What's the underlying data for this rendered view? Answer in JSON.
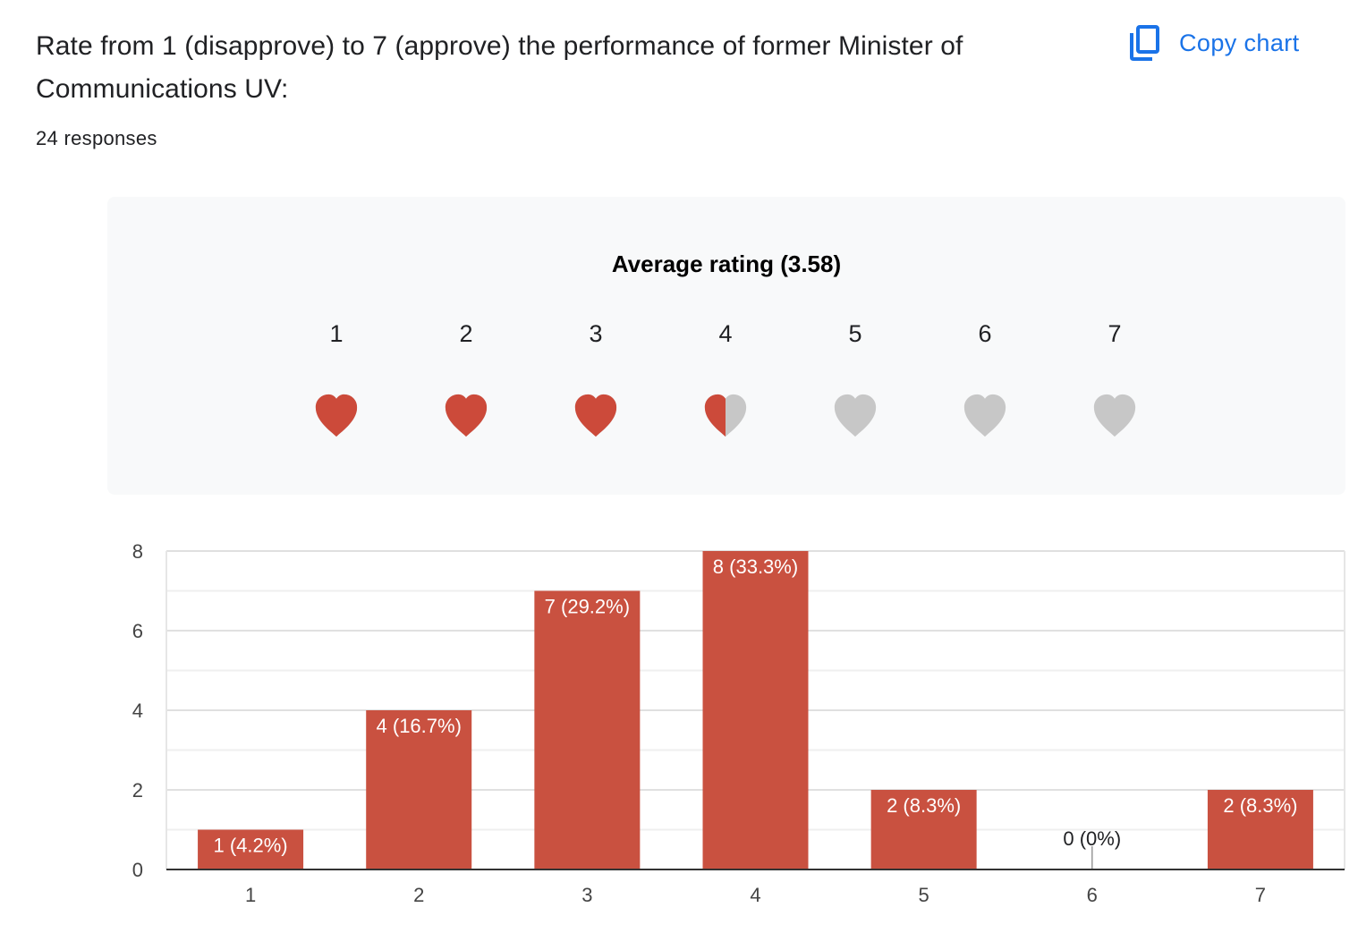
{
  "question": {
    "title": "Rate from 1 (disapprove) to 7 (approve) the performance of former Minister of Communications UV:",
    "responses": "24 responses"
  },
  "toolbar": {
    "copy_label": "Copy chart",
    "copy_icon": "copy-icon"
  },
  "rating": {
    "average_label": "Average rating (3.58)",
    "average": 3.58,
    "scale": [
      "1",
      "2",
      "3",
      "4",
      "5",
      "6",
      "7"
    ],
    "icon": "heart-icon",
    "fill_color": "#cc4a3a",
    "empty_color": "#c7c7c7"
  },
  "colors": {
    "accent": "#1a73e8",
    "bar": "#c95140"
  },
  "chart_data": {
    "type": "bar",
    "categories": [
      "1",
      "2",
      "3",
      "4",
      "5",
      "6",
      "7"
    ],
    "values": [
      1,
      4,
      7,
      8,
      2,
      0,
      2
    ],
    "data_labels": [
      "1 (4.2%)",
      "4 (16.7%)",
      "7 (29.2%)",
      "8 (33.3%)",
      "2 (8.3%)",
      "0 (0%)",
      "2 (8.3%)"
    ],
    "yticks": [
      "0",
      "2",
      "4",
      "6",
      "8"
    ],
    "ylim": [
      0,
      8
    ],
    "grid": true,
    "title": "",
    "xlabel": "",
    "ylabel": ""
  }
}
